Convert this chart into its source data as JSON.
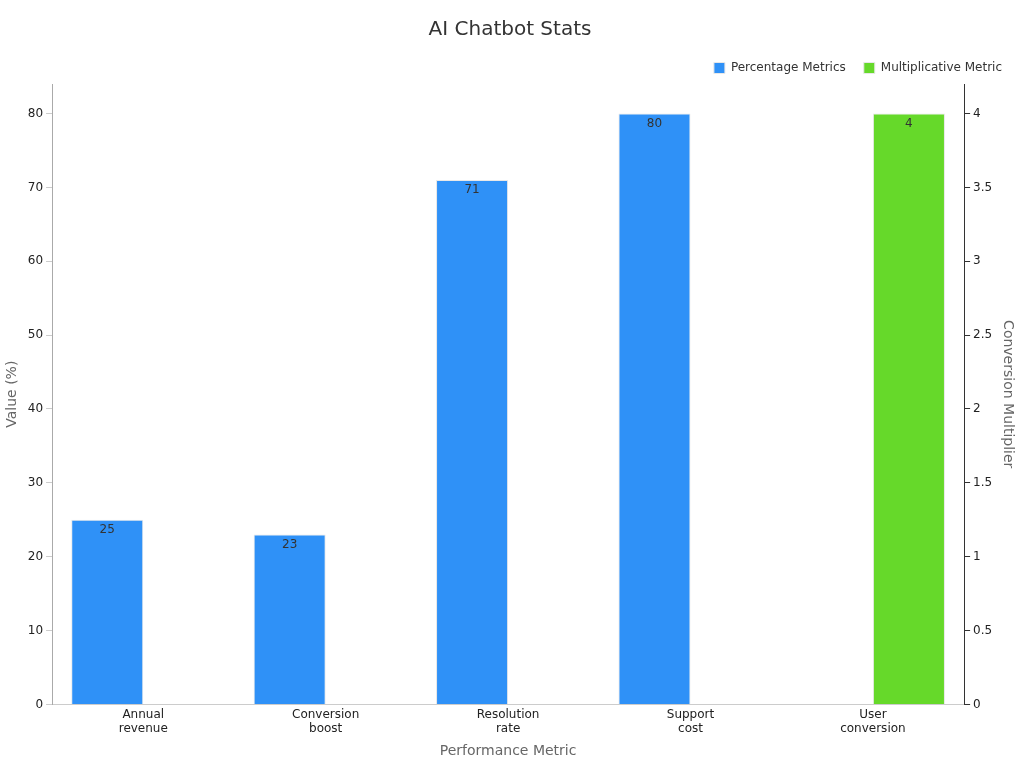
{
  "chart_data": {
    "type": "bar",
    "title": "AI Chatbot Stats",
    "xlabel": "Performance Metric",
    "ylabel": "Value (%)",
    "y2label": "Conversion Multiplier",
    "categories": [
      "Annual revenue",
      "Conversion boost",
      "Resolution rate",
      "Support cost",
      "User conversion"
    ],
    "series": [
      {
        "name": "Percentage Metrics",
        "color": "#2f91f7",
        "values": [
          25,
          23,
          71,
          80,
          null
        ]
      },
      {
        "name": "Multiplicative Metric",
        "color": "#66d92a",
        "values": [
          null,
          null,
          null,
          null,
          4
        ],
        "axis": "y2"
      }
    ],
    "ylim": [
      0,
      84
    ],
    "yticks": [
      0,
      10,
      20,
      30,
      40,
      50,
      60,
      70,
      80
    ],
    "y2lim": [
      0,
      4.2
    ],
    "y2ticks": [
      0,
      0.5,
      1,
      1.5,
      2,
      2.5,
      3,
      3.5,
      4
    ],
    "legend": "top right",
    "data_labels": true
  }
}
